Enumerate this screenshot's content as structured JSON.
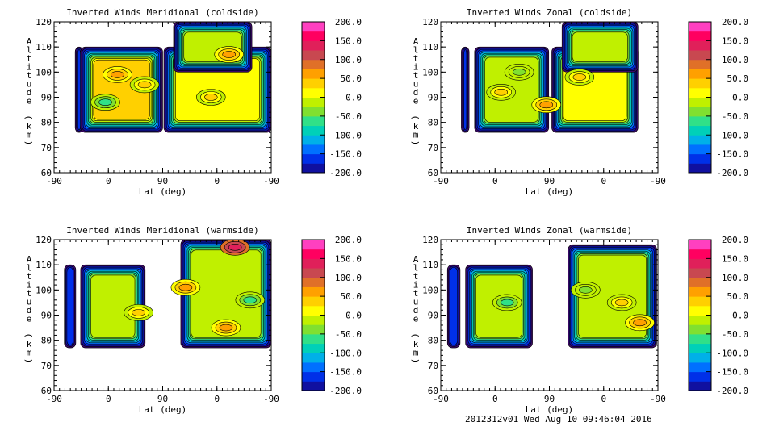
{
  "chart_data": [
    {
      "type": "contour",
      "title": "Inverted Winds Meridional (coldside)",
      "xlabel": "Lat (deg)",
      "ylabel": "Altitude (km)",
      "xticks": [
        "-90",
        "0",
        "90",
        "0",
        "-90"
      ],
      "yticks": [
        "60",
        "70",
        "80",
        "90",
        "100",
        "110",
        "120"
      ],
      "ylim": [
        60,
        120
      ],
      "xlim_index": [
        0,
        360
      ],
      "core": 50,
      "regions": [
        {
          "x": [
            35,
            48
          ],
          "y": [
            76,
            110
          ],
          "core": -150
        },
        {
          "x": [
            44,
            180
          ],
          "y": [
            76,
            110
          ],
          "core": 50
        },
        {
          "x": [
            182,
            360
          ],
          "y": [
            76,
            110
          ],
          "core": 25
        },
        {
          "x": [
            198,
            328
          ],
          "y": [
            100,
            120
          ],
          "core": 0
        }
      ],
      "hotspots": [
        {
          "x": 105,
          "y": 99,
          "v": 75
        },
        {
          "x": 150,
          "y": 95,
          "v": 50
        },
        {
          "x": 85,
          "y": 88,
          "v": -50
        },
        {
          "x": 290,
          "y": 107,
          "v": 75
        },
        {
          "x": 260,
          "y": 90,
          "v": 50
        }
      ]
    },
    {
      "type": "contour",
      "title": "Inverted Winds Zonal (coldside)",
      "xlabel": "Lat (deg)",
      "ylabel": "Altitude (km)",
      "xticks": [
        "-90",
        "0",
        "90",
        "0",
        "-90"
      ],
      "yticks": [
        "60",
        "70",
        "80",
        "90",
        "100",
        "110",
        "120"
      ],
      "ylim": [
        60,
        120
      ],
      "xlim_index": [
        0,
        360
      ],
      "regions": [
        {
          "x": [
            34,
            47
          ],
          "y": [
            76,
            110
          ],
          "core": -150
        },
        {
          "x": [
            56,
            179
          ],
          "y": [
            76,
            110
          ],
          "core": 0
        },
        {
          "x": [
            184,
            327
          ],
          "y": [
            76,
            110
          ],
          "core": 25
        },
        {
          "x": [
            201,
            327
          ],
          "y": [
            100,
            120
          ],
          "core": 0
        }
      ],
      "hotspots": [
        {
          "x": 100,
          "y": 92,
          "v": 50
        },
        {
          "x": 230,
          "y": 98,
          "v": 50
        },
        {
          "x": 175,
          "y": 87,
          "v": 75
        },
        {
          "x": 130,
          "y": 100,
          "v": -25
        }
      ]
    },
    {
      "type": "contour",
      "title": "Inverted Winds Meridional (warmside)",
      "xlabel": "Lat (deg)",
      "ylabel": "Altitude (km)",
      "xticks": [
        "-90",
        "0",
        "90",
        "0",
        "-90"
      ],
      "yticks": [
        "60",
        "70",
        "80",
        "90",
        "100",
        "110",
        "120"
      ],
      "ylim": [
        60,
        120
      ],
      "xlim_index": [
        0,
        360
      ],
      "regions": [
        {
          "x": [
            17,
            36
          ],
          "y": [
            77,
            110
          ],
          "core": -150
        },
        {
          "x": [
            44,
            151
          ],
          "y": [
            77,
            110
          ],
          "core": 0
        },
        {
          "x": [
            210,
            360
          ],
          "y": [
            77,
            120
          ],
          "core": 0
        }
      ],
      "hotspots": [
        {
          "x": 300,
          "y": 117,
          "v": 150
        },
        {
          "x": 285,
          "y": 85,
          "v": 75
        },
        {
          "x": 218,
          "y": 101,
          "v": 75
        },
        {
          "x": 140,
          "y": 91,
          "v": 50
        },
        {
          "x": 325,
          "y": 96,
          "v": -50
        }
      ]
    },
    {
      "type": "contour",
      "title": "Inverted Winds Zonal (warmside)",
      "xlabel": "Lat (deg)",
      "ylabel": "Altitude (km)",
      "xticks": [
        "-90",
        "0",
        "90",
        "0",
        "-90"
      ],
      "yticks": [
        "60",
        "70",
        "80",
        "90",
        "100",
        "110",
        "120"
      ],
      "ylim": [
        60,
        120
      ],
      "xlim_index": [
        0,
        360
      ],
      "regions": [
        {
          "x": [
            11,
            32
          ],
          "y": [
            77,
            110
          ],
          "core": -150
        },
        {
          "x": [
            41,
            152
          ],
          "y": [
            77,
            110
          ],
          "core": 0
        },
        {
          "x": [
            211,
            358
          ],
          "y": [
            77,
            118
          ],
          "core": 0
        }
      ],
      "hotspots": [
        {
          "x": 330,
          "y": 87,
          "v": 75
        },
        {
          "x": 110,
          "y": 95,
          "v": -50
        },
        {
          "x": 240,
          "y": 100,
          "v": -25
        },
        {
          "x": 300,
          "y": 95,
          "v": 50
        }
      ]
    }
  ],
  "colorbar": {
    "ticks": [
      "200.0",
      "150.0",
      "100.0",
      "50.0",
      "0.0",
      "-50.0",
      "-100.0",
      "-150.0",
      "-200.0"
    ],
    "colors": [
      "#1a0830",
      "#3a0868",
      "#1010a0",
      "#0030e8",
      "#0070ff",
      "#00b0e8",
      "#00d0b8",
      "#30e088",
      "#80e030",
      "#c0f000",
      "#ffff00",
      "#ffd000",
      "#ffa000",
      "#e07028",
      "#c84850",
      "#e0205a",
      "#ff0060",
      "#ff40c0",
      "#ff70ff"
    ]
  },
  "footer": "2012312v01 Wed Aug 10 09:46:04 2016"
}
